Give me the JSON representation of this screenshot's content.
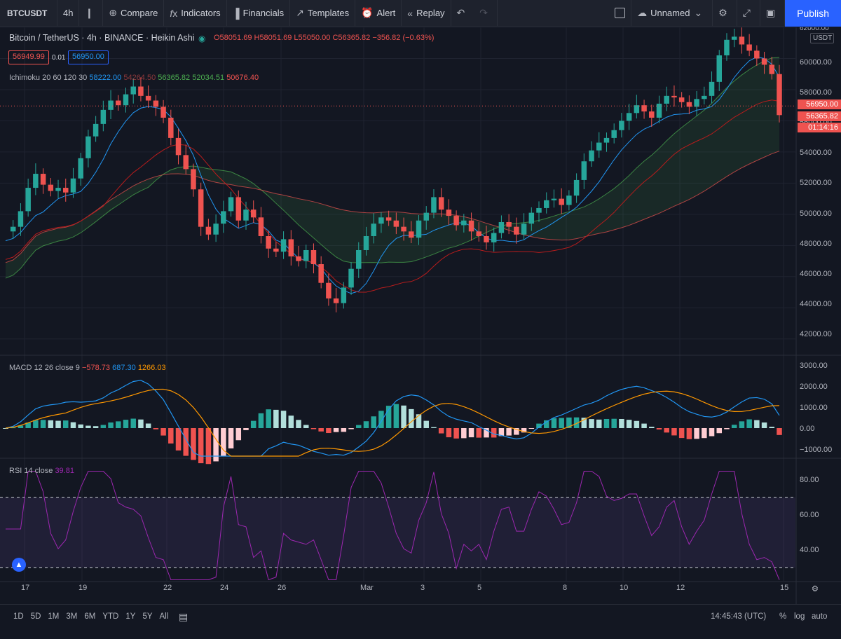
{
  "toolbar": {
    "symbol": "BTCUSDT",
    "interval": "4h",
    "compare": "Compare",
    "indicators": "Indicators",
    "financials": "Financials",
    "templates": "Templates",
    "alert": "Alert",
    "replay": "Replay",
    "layout_name": "Unnamed",
    "publish": "Publish"
  },
  "legend": {
    "title": "Bitcoin / TetherUS · 4h · BINANCE · Heikin Ashi",
    "ohlc": {
      "o": "O58051.69",
      "h": "H58051.69",
      "l": "L55050.00",
      "c": "C56365.82",
      "chg": "−356.82 (−0.63%)"
    },
    "bid": "56949.99",
    "spread": "0.01",
    "ask": "56950.00",
    "ichimoku": {
      "name": "Ichimoku 20 60 120 30",
      "v1": "58222.00",
      "v2": "54264.50",
      "v3": "56365.82",
      "v4": "52034.51",
      "v5": "50676.40"
    },
    "macd": {
      "name": "MACD 12 26 close 9",
      "v1": "−578.73",
      "v2": "687.30",
      "v3": "1266.03"
    },
    "rsi": {
      "name": "RSI 14 close",
      "v1": "39.81"
    }
  },
  "price_axis": {
    "currency": "USDT",
    "labels": [
      "60000.00",
      "58000.00",
      "56000.00",
      "54000.00",
      "52000.00",
      "50000.00",
      "48000.00",
      "46000.00",
      "44000.00",
      "42000.00"
    ],
    "top_clip": "62000.00",
    "tag_ask": "56950.00",
    "tag_last": "56365.82",
    "tag_countdown": "01:14:16"
  },
  "macd_axis": {
    "labels": [
      "3000.00",
      "2000.00",
      "1000.00",
      "0.00",
      "−1000.00"
    ]
  },
  "rsi_axis": {
    "labels": [
      "80.00",
      "60.00",
      "40.00"
    ]
  },
  "time_axis": {
    "labels": [
      "17",
      "19",
      "22",
      "24",
      "26",
      "Mar",
      "3",
      "5",
      "8",
      "10",
      "12",
      "15"
    ]
  },
  "bottom": {
    "ranges": [
      "1D",
      "5D",
      "1M",
      "3M",
      "6M",
      "YTD",
      "1Y",
      "5Y",
      "All"
    ],
    "clock": "14:45:43 (UTC)",
    "pct": "%",
    "log": "log",
    "auto": "auto"
  },
  "colors": {
    "up": "#26a69a",
    "down": "#ef5350",
    "bg": "#131722",
    "accent": "#2962ff",
    "rsi": "#9c27b0"
  },
  "chart_data": {
    "type": "candlestick",
    "title": "Bitcoin / TetherUS · 4h · BINANCE · Heikin Ashi",
    "ylim": [
      41000,
      62000
    ],
    "close_series": [
      48900,
      49200,
      50200,
      51700,
      52600,
      51900,
      51500,
      51700,
      51400,
      52300,
      53600,
      55000,
      55800,
      56700,
      57300,
      57000,
      57700,
      58200,
      57600,
      57300,
      56900,
      56200,
      54900,
      53800,
      52900,
      51600,
      49200,
      48700,
      49400,
      50200,
      51100,
      49600,
      50300,
      49800,
      48600,
      47800,
      47600,
      48400,
      47300,
      47000,
      47700,
      46800,
      45600,
      44600,
      44300,
      45300,
      46500,
      47700,
      48600,
      49400,
      49800,
      49600,
      49200,
      48900,
      48500,
      49600,
      50100,
      51100,
      50300,
      49900,
      49300,
      49600,
      48900,
      48600,
      48200,
      48800,
      49500,
      49200,
      48700,
      49400,
      50100,
      50400,
      50900,
      51000,
      50600,
      51200,
      52200,
      53400,
      54100,
      54600,
      54900,
      55400,
      56000,
      56500,
      57000,
      56600,
      56200,
      57100,
      57600,
      57500,
      57200,
      56900,
      57400,
      57600,
      58500,
      60200,
      61200,
      61400,
      60900,
      60500,
      60000,
      59600,
      59000,
      56365.82
    ]
  }
}
